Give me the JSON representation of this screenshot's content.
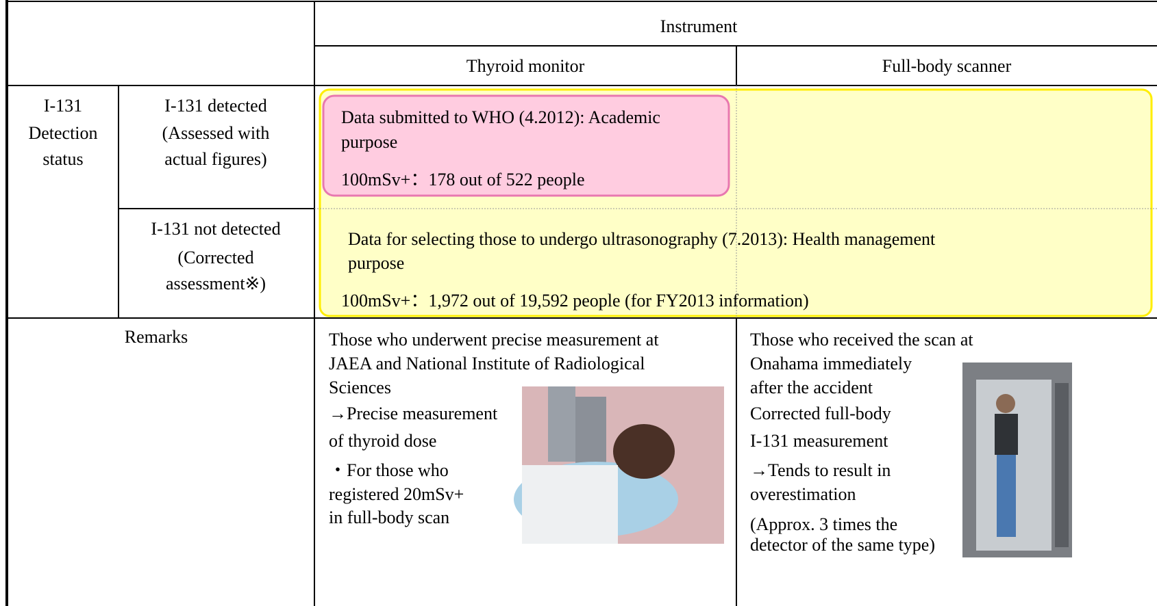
{
  "table": {
    "header": {
      "group": "Instrument",
      "columns": [
        "Thyroid monitor",
        "Full-body scanner"
      ]
    },
    "row_group": {
      "label": [
        "I-131",
        "Detection",
        "status"
      ]
    },
    "rows": [
      {
        "label": [
          "I-131 detected",
          "(Assessed with",
          "actual figures)"
        ]
      },
      {
        "label": [
          "I-131 not detected",
          "(Corrected",
          "assessment※)"
        ]
      }
    ],
    "remarks": {
      "label": "Remarks",
      "thyroid": [
        "Those who underwent precise measurement at",
        "JAEA and National Institute of Radiological",
        "Sciences",
        "→Precise measurement",
        "of thyroid dose",
        "・For those who",
        "registered 20mSv+",
        "in full-body scan"
      ],
      "fullbody": [
        "Those who received the scan at",
        "Onahama immediately",
        "after the accident",
        "Corrected full-body",
        "I-131 measurement",
        "→Tends to result in",
        "overestimation",
        "(Approx. 3 times the",
        "detector of the same type)"
      ]
    }
  },
  "boxes": [
    {
      "title": [
        "Data submitted to WHO (4.2012):  Academic",
        "purpose"
      ],
      "result": "100mSv+：178 out of 522 people"
    },
    {
      "title": [
        "Data for selecting those to undergo ultrasonography (7.2013):  Health management",
        "purpose"
      ],
      "result": "100mSv+：1,972 out of 19,592 people (for FY2013 information)"
    }
  ]
}
